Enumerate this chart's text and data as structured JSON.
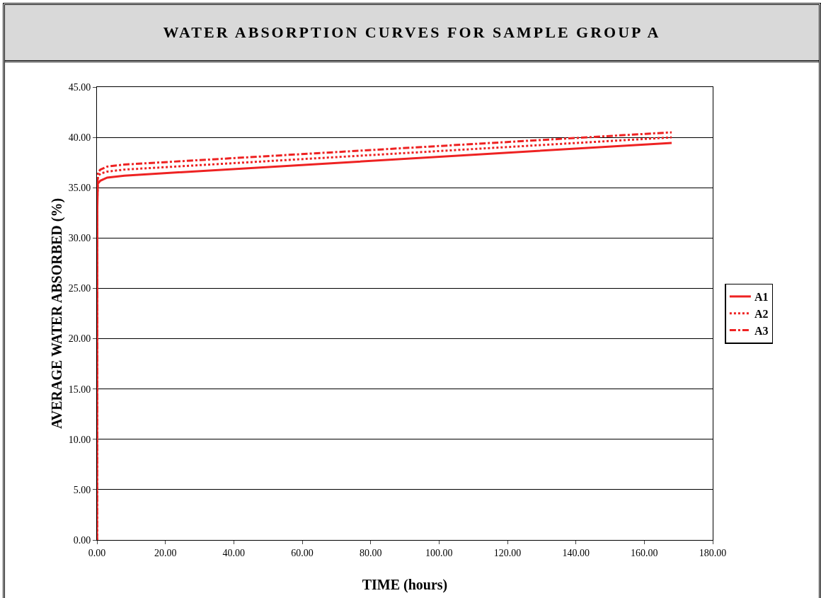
{
  "chart_data": {
    "type": "line",
    "title": "WATER ABSORPTION CURVES FOR SAMPLE GROUP A",
    "xlabel": "TIME (hours)",
    "ylabel": "AVERAGE WATER ABSORBED (%)",
    "x": [
      0,
      0.1,
      0.25,
      1,
      3,
      8,
      168
    ],
    "series": [
      {
        "name": "A1",
        "color": "#ee2222",
        "line_style": "solid",
        "values": [
          0,
          33,
          35.4,
          35.7,
          36.0,
          36.2,
          39.45
        ]
      },
      {
        "name": "A2",
        "color": "#ee2222",
        "line_style": "dotted",
        "values": [
          0,
          34,
          36.1,
          36.4,
          36.6,
          36.8,
          40.0
        ]
      },
      {
        "name": "A3",
        "color": "#ee2222",
        "line_style": "dashed",
        "values": [
          0,
          34.5,
          36.5,
          36.8,
          37.1,
          37.3,
          40.5
        ]
      }
    ],
    "xlim": [
      0,
      180
    ],
    "xticks": [
      {
        "value": 0,
        "label": "0.00"
      },
      {
        "value": 20,
        "label": "20.00"
      },
      {
        "value": 40,
        "label": "40.00"
      },
      {
        "value": 60,
        "label": "60.00"
      },
      {
        "value": 80,
        "label": "80.00"
      },
      {
        "value": 100,
        "label": "100.00"
      },
      {
        "value": 120,
        "label": "120.00"
      },
      {
        "value": 140,
        "label": "140.00"
      },
      {
        "value": 160,
        "label": "160.00"
      },
      {
        "value": 180,
        "label": "180.00"
      }
    ],
    "ylim": [
      0,
      45
    ],
    "yticks": [
      {
        "value": 0,
        "label": "0.00"
      },
      {
        "value": 5,
        "label": "5.00"
      },
      {
        "value": 10,
        "label": "10.00"
      },
      {
        "value": 15,
        "label": "15.00"
      },
      {
        "value": 20,
        "label": "20.00"
      },
      {
        "value": 25,
        "label": "25.00"
      },
      {
        "value": 30,
        "label": "30.00"
      },
      {
        "value": 35,
        "label": "35.00"
      },
      {
        "value": 40,
        "label": "40.00"
      },
      {
        "value": 45,
        "label": "45.00"
      }
    ],
    "grid": "y",
    "legend": "right",
    "marker": "none"
  }
}
